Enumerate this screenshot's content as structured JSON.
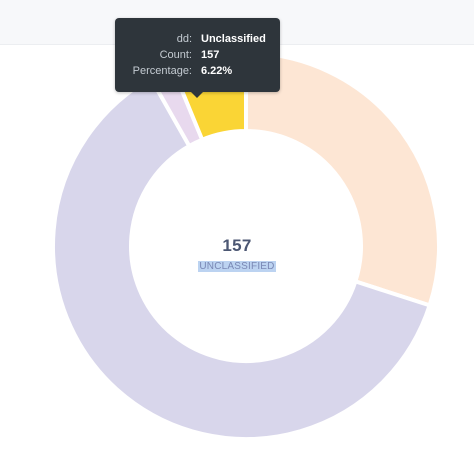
{
  "chart_data": {
    "type": "pie",
    "variant": "donut",
    "slices": [
      {
        "value": 0.2998,
        "color": "#fde6d4"
      },
      {
        "value": 0.6181,
        "color": "#d8d6eb"
      },
      {
        "value": 0.0199,
        "color": "#e8d9ee"
      },
      {
        "label": "Unclassified",
        "value": 157,
        "percent": 0.0622,
        "color": "#fad535"
      }
    ],
    "center": {
      "value": "157",
      "label": "UNCLASSIFIED"
    }
  },
  "tooltip": {
    "rows": [
      {
        "key": "dd:",
        "value": "Unclassified"
      },
      {
        "key": "Count:",
        "value": "157"
      },
      {
        "key": "Percentage:",
        "value": "6.22%"
      }
    ]
  },
  "colors": {
    "center_text": "#4c5773",
    "tooltip_bg": "#2e353b"
  }
}
